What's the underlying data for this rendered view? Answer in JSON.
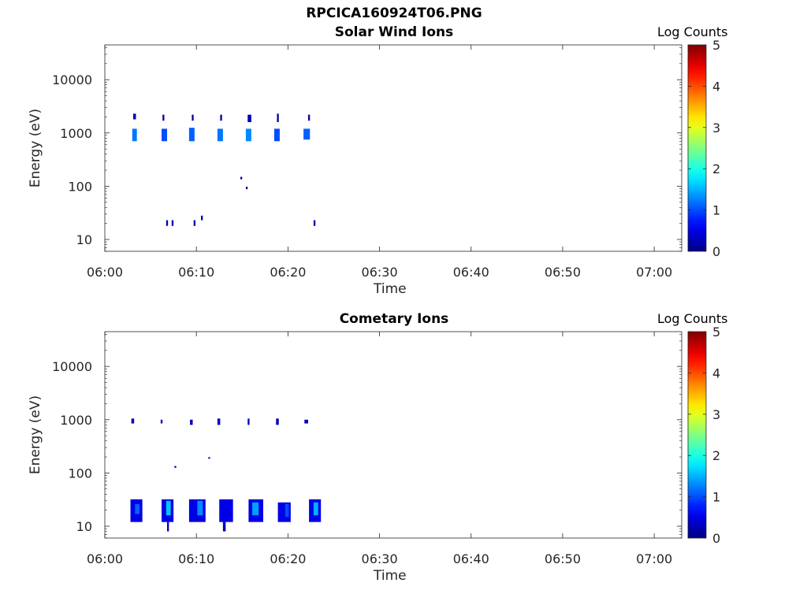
{
  "figure_title": "RPCICA160924T06.PNG",
  "chart_data": [
    {
      "type": "heatmap",
      "title": "Solar Wind Ions",
      "xlabel": "Time",
      "ylabel": "Energy (eV)",
      "x_ticks": [
        "06:00",
        "06:10",
        "06:20",
        "06:30",
        "06:40",
        "06:50",
        "07:00"
      ],
      "xlim": [
        "06:00",
        "07:03"
      ],
      "y_ticks": [
        "10",
        "100",
        "1000",
        "10000"
      ],
      "y_scale": "log",
      "ylim": [
        6,
        45000
      ],
      "colorbar": {
        "label": "Log Counts",
        "ticks": [
          "0",
          "1",
          "2",
          "3",
          "4",
          "5"
        ],
        "range": [
          0,
          5
        ],
        "colormap": "jet"
      },
      "cells": [
        {
          "t": 3.0,
          "dt": 0.5,
          "e_lo": 700,
          "e_hi": 1200,
          "v": 1.2
        },
        {
          "t": 3.1,
          "dt": 0.3,
          "e_lo": 1800,
          "e_hi": 2300,
          "v": 0.3
        },
        {
          "t": 6.2,
          "dt": 0.6,
          "e_lo": 700,
          "e_hi": 1200,
          "v": 1.0
        },
        {
          "t": 6.3,
          "dt": 0.2,
          "e_lo": 1700,
          "e_hi": 2200,
          "v": 0.2
        },
        {
          "t": 9.2,
          "dt": 0.6,
          "e_lo": 700,
          "e_hi": 1250,
          "v": 1.1
        },
        {
          "t": 9.5,
          "dt": 0.2,
          "e_lo": 1700,
          "e_hi": 2200,
          "v": 0.2
        },
        {
          "t": 12.3,
          "dt": 0.6,
          "e_lo": 700,
          "e_hi": 1200,
          "v": 1.2
        },
        {
          "t": 12.6,
          "dt": 0.2,
          "e_lo": 1700,
          "e_hi": 2200,
          "v": 0.2
        },
        {
          "t": 15.4,
          "dt": 0.6,
          "e_lo": 700,
          "e_hi": 1200,
          "v": 1.3
        },
        {
          "t": 15.6,
          "dt": 0.4,
          "e_lo": 1600,
          "e_hi": 2200,
          "v": 0.3
        },
        {
          "t": 18.5,
          "dt": 0.6,
          "e_lo": 700,
          "e_hi": 1200,
          "v": 1.0
        },
        {
          "t": 18.8,
          "dt": 0.2,
          "e_lo": 1600,
          "e_hi": 2300,
          "v": 0.2
        },
        {
          "t": 21.7,
          "dt": 0.7,
          "e_lo": 750,
          "e_hi": 1200,
          "v": 1.1
        },
        {
          "t": 22.2,
          "dt": 0.2,
          "e_lo": 1700,
          "e_hi": 2200,
          "v": 0.2
        },
        {
          "t": 14.8,
          "dt": 0.2,
          "e_lo": 135,
          "e_hi": 150,
          "v": 0.2
        },
        {
          "t": 15.4,
          "dt": 0.2,
          "e_lo": 88,
          "e_hi": 98,
          "v": 0.2
        },
        {
          "t": 6.7,
          "dt": 0.2,
          "e_lo": 18,
          "e_hi": 23,
          "v": 0.2
        },
        {
          "t": 7.3,
          "dt": 0.2,
          "e_lo": 18,
          "e_hi": 23,
          "v": 0.2
        },
        {
          "t": 9.7,
          "dt": 0.2,
          "e_lo": 18,
          "e_hi": 23,
          "v": 0.2
        },
        {
          "t": 10.5,
          "dt": 0.2,
          "e_lo": 23,
          "e_hi": 28,
          "v": 0.2
        },
        {
          "t": 22.8,
          "dt": 0.2,
          "e_lo": 18,
          "e_hi": 23,
          "v": 0.2
        }
      ]
    },
    {
      "type": "heatmap",
      "title": "Cometary Ions",
      "xlabel": "Time",
      "ylabel": "Energy (eV)",
      "x_ticks": [
        "06:00",
        "06:10",
        "06:20",
        "06:30",
        "06:40",
        "06:50",
        "07:00"
      ],
      "xlim": [
        "06:00",
        "07:03"
      ],
      "y_ticks": [
        "10",
        "100",
        "1000",
        "10000"
      ],
      "y_scale": "log",
      "ylim": [
        6,
        45000
      ],
      "colorbar": {
        "label": "Log Counts",
        "ticks": [
          "0",
          "1",
          "2",
          "3",
          "4",
          "5"
        ],
        "range": [
          0,
          5
        ],
        "colormap": "jet"
      },
      "cells": [
        {
          "t": 2.9,
          "dt": 0.3,
          "e_lo": 850,
          "e_hi": 1050,
          "v": 0.3
        },
        {
          "t": 6.1,
          "dt": 0.2,
          "e_lo": 850,
          "e_hi": 1000,
          "v": 0.3
        },
        {
          "t": 9.3,
          "dt": 0.3,
          "e_lo": 800,
          "e_hi": 1000,
          "v": 0.3
        },
        {
          "t": 12.3,
          "dt": 0.3,
          "e_lo": 800,
          "e_hi": 1050,
          "v": 0.3
        },
        {
          "t": 15.6,
          "dt": 0.2,
          "e_lo": 800,
          "e_hi": 1050,
          "v": 0.3
        },
        {
          "t": 18.7,
          "dt": 0.3,
          "e_lo": 800,
          "e_hi": 1050,
          "v": 0.3
        },
        {
          "t": 21.8,
          "dt": 0.4,
          "e_lo": 850,
          "e_hi": 1000,
          "v": 0.3
        },
        {
          "t": 7.6,
          "dt": 0.2,
          "e_lo": 125,
          "e_hi": 135,
          "v": 0.2
        },
        {
          "t": 11.3,
          "dt": 0.2,
          "e_lo": 185,
          "e_hi": 198,
          "v": 0.2
        },
        {
          "t": 2.8,
          "dt": 1.3,
          "e_lo": 12,
          "e_hi": 32,
          "v": 0.5
        },
        {
          "t": 3.3,
          "dt": 0.5,
          "e_lo": 17,
          "e_hi": 26,
          "v": 1.1
        },
        {
          "t": 6.2,
          "dt": 1.3,
          "e_lo": 12,
          "e_hi": 32,
          "v": 0.5
        },
        {
          "t": 6.7,
          "dt": 0.5,
          "e_lo": 16,
          "e_hi": 30,
          "v": 1.6
        },
        {
          "t": 6.8,
          "dt": 0.2,
          "e_lo": 8,
          "e_hi": 12,
          "v": 0.3
        },
        {
          "t": 9.2,
          "dt": 1.8,
          "e_lo": 12,
          "e_hi": 32,
          "v": 0.5
        },
        {
          "t": 10.1,
          "dt": 0.6,
          "e_lo": 16,
          "e_hi": 30,
          "v": 1.3
        },
        {
          "t": 12.5,
          "dt": 1.5,
          "e_lo": 12,
          "e_hi": 32,
          "v": 0.5
        },
        {
          "t": 12.9,
          "dt": 0.3,
          "e_lo": 8,
          "e_hi": 12,
          "v": 0.3
        },
        {
          "t": 15.7,
          "dt": 1.6,
          "e_lo": 12,
          "e_hi": 32,
          "v": 0.5
        },
        {
          "t": 16.1,
          "dt": 0.7,
          "e_lo": 16,
          "e_hi": 28,
          "v": 1.4
        },
        {
          "t": 18.9,
          "dt": 1.4,
          "e_lo": 12,
          "e_hi": 28,
          "v": 0.5
        },
        {
          "t": 19.7,
          "dt": 0.4,
          "e_lo": 15,
          "e_hi": 26,
          "v": 1.0
        },
        {
          "t": 22.3,
          "dt": 1.3,
          "e_lo": 12,
          "e_hi": 32,
          "v": 0.5
        },
        {
          "t": 22.8,
          "dt": 0.5,
          "e_lo": 16,
          "e_hi": 28,
          "v": 1.5
        }
      ]
    }
  ]
}
